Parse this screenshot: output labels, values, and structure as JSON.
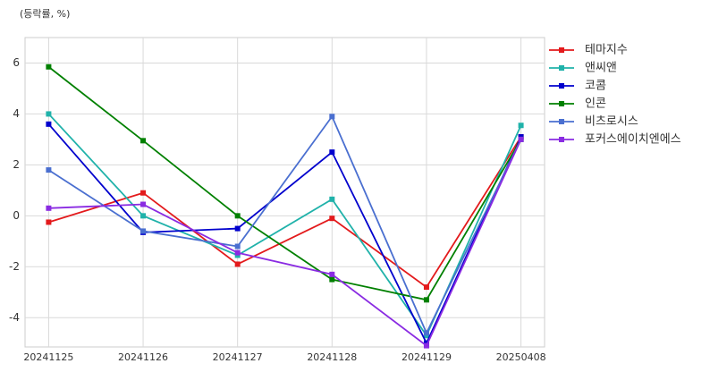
{
  "chart_data": {
    "type": "line",
    "y_label": "(등락률, %)",
    "categories": [
      "20241125",
      "20241126",
      "20241127",
      "20241128",
      "20241129",
      "20250408"
    ],
    "series": [
      {
        "name": "테마지수",
        "color": "#e31a1c",
        "values": [
          -0.25,
          0.9,
          -1.9,
          -0.1,
          -2.8,
          3.1
        ]
      },
      {
        "name": "앤씨앤",
        "color": "#20b2aa",
        "values": [
          4.0,
          0.0,
          -1.55,
          0.65,
          -4.7,
          3.55
        ]
      },
      {
        "name": "코콤",
        "color": "#0000cd",
        "values": [
          3.6,
          -0.65,
          -0.5,
          2.5,
          -5.0,
          3.1
        ]
      },
      {
        "name": "인콘",
        "color": "#008000",
        "values": [
          5.85,
          2.95,
          0.0,
          -2.5,
          -3.3,
          3.0
        ]
      },
      {
        "name": "비츠로시스",
        "color": "#4a6fd0",
        "values": [
          1.8,
          -0.6,
          -1.2,
          3.9,
          -4.6,
          3.0
        ]
      },
      {
        "name": "포커스에이치엔에스",
        "color": "#8a2be2",
        "values": [
          0.3,
          0.45,
          -1.45,
          -2.3,
          -5.1,
          3.0
        ]
      }
    ],
    "ylim": [
      -5.15,
      7
    ],
    "yticks": [
      -4,
      -2,
      0,
      2,
      4,
      6
    ],
    "grid": true,
    "legend": "outside-right"
  }
}
